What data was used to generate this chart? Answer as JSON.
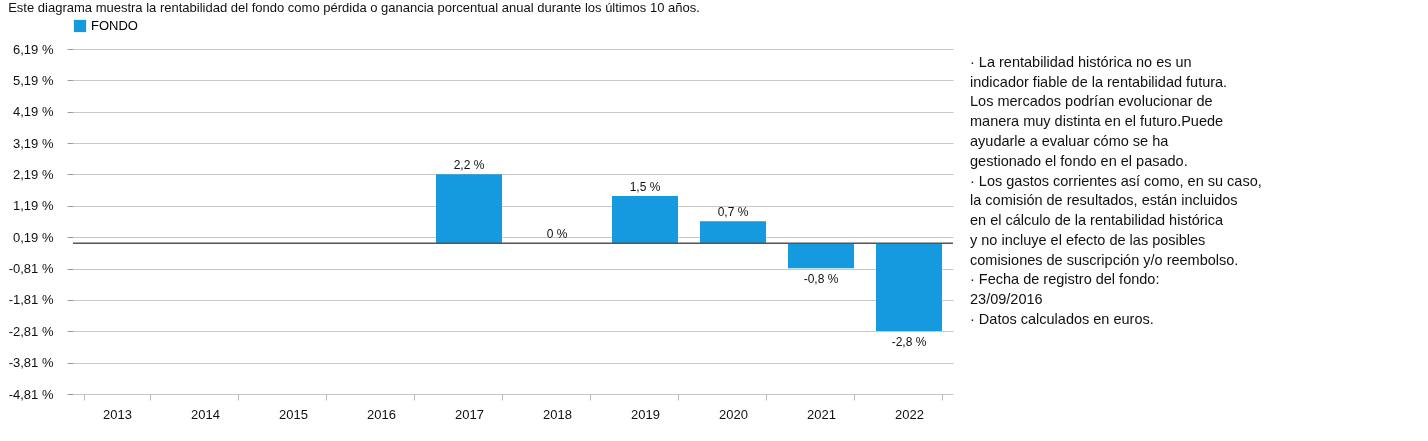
{
  "chart_data": {
    "type": "bar",
    "title": "Este diagrama muestra la rentabilidad del fondo como pérdida o ganancia porcentual anual durante los últimos 10 años.",
    "categories": [
      "2013",
      "2014",
      "2015",
      "2016",
      "2017",
      "2018",
      "2019",
      "2020",
      "2021",
      "2022"
    ],
    "series": [
      {
        "name": "FONDO",
        "color": "#1599df",
        "values": [
          null,
          null,
          null,
          null,
          2.2,
          0,
          1.5,
          0.7,
          -0.8,
          -2.8
        ],
        "value_labels": [
          null,
          null,
          null,
          null,
          "2,2 %",
          "0 %",
          "1,5 %",
          "0,7 %",
          "-0,8 %",
          "-2,8 %"
        ]
      }
    ],
    "ylim": [
      -4.81,
      6.19
    ],
    "yticks": [
      {
        "value": -4.81,
        "label": "-4,81 %"
      },
      {
        "value": -3.81,
        "label": "-3,81 %"
      },
      {
        "value": -2.81,
        "label": "-2,81 %"
      },
      {
        "value": -1.81,
        "label": "-1,81 %"
      },
      {
        "value": -0.81,
        "label": "-0,81 %"
      },
      {
        "value": 0.19,
        "label": "0,19 %"
      },
      {
        "value": 1.19,
        "label": "1,19 %"
      },
      {
        "value": 2.19,
        "label": "2,19 %"
      },
      {
        "value": 3.19,
        "label": "3,19 %"
      },
      {
        "value": 4.19,
        "label": "4,19 %"
      },
      {
        "value": 5.19,
        "label": "5,19 %"
      },
      {
        "value": 6.19,
        "label": "6,19 %"
      }
    ],
    "grid": "y",
    "legend": "top",
    "ref_lines": [
      {
        "axis": "y",
        "value": 0,
        "color": "#555555"
      }
    ],
    "annotations": [
      "· La rentabilidad histórica no es un",
      "indicador fiable de la rentabilidad futura.",
      "Los mercados podrían evolucionar de",
      "manera muy distinta en el futuro.Puede",
      "ayudarle a evaluar cómo se ha",
      "gestionado el fondo en el pasado.",
      "· Los gastos corrientes así como, en su caso,",
      " la comisión de resultados, están incluidos",
      "en el cálculo de la rentabilidad  histórica",
      "y no incluye el efecto de las posibles",
      "comisiones de suscripción y/o reembolso.",
      "· Fecha de registro del fondo:",
      " 23/09/2016",
      "· Datos calculados en euros."
    ]
  }
}
